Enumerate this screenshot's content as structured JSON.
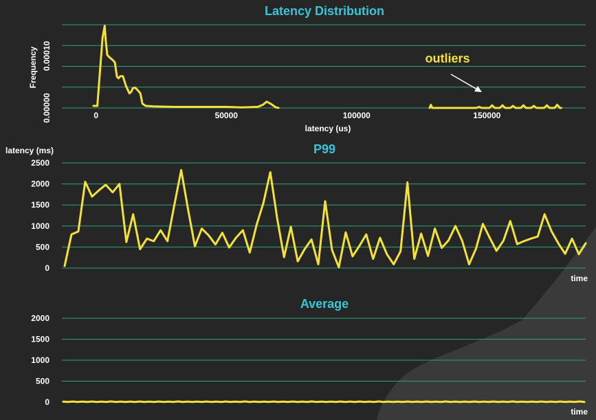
{
  "colors": {
    "background": "#262626",
    "title": "#38c6d6",
    "grid": "#2fa37a",
    "series": "#f2e23a",
    "annotation": "#f2e23a",
    "text": "#ffffff"
  },
  "chart_data": [
    {
      "type": "line",
      "title": "Latency Distribution",
      "xlabel": "latency (us)",
      "ylabel": "Frequency",
      "xlim": [
        -6000,
        180000
      ],
      "ylim": [
        0,
        0.00016
      ],
      "xticks": [
        0,
        50000,
        100000,
        150000
      ],
      "xtick_labels": [
        "0",
        "50000",
        "100000",
        "150000"
      ],
      "yticks": [
        0,
        0.0001
      ],
      "ytick_labels": [
        "0.00000",
        "0.00010"
      ],
      "grid": true,
      "annotation": {
        "text": "outliers",
        "arrow": true
      },
      "series": [
        {
          "x": [
            -1000,
            500,
            1500,
            2500,
            3300,
            3700,
            4300,
            5000,
            6200,
            7200,
            8000,
            8600,
            9300,
            10300,
            11500,
            12800,
            13500,
            14100,
            15000,
            16000,
            17000,
            17800,
            19000,
            22000,
            30000,
            40000,
            50000,
            56000,
            62000,
            64000,
            65500,
            67000,
            69000,
            70000
          ],
          "y": [
            4e-06,
            4e-06,
            7e-05,
            0.000135,
            0.000158,
            0.00013,
            0.000102,
            9.8e-05,
            9.3e-05,
            8.8e-05,
            6e-05,
            5.7e-05,
            6.1e-05,
            6.1e-05,
            4.2e-05,
            2.8e-05,
            3.1e-05,
            3.8e-05,
            3.9e-05,
            3.4e-05,
            2.8e-05,
            8e-06,
            4e-06,
            3e-06,
            2e-06,
            2e-06,
            2e-06,
            1e-06,
            2e-06,
            6e-06,
            1.2e-05,
            8e-06,
            1e-06,
            0
          ]
        },
        {
          "x": [
            128000,
            128500,
            129000,
            129500,
            130000,
            146000,
            147000,
            148000,
            151000,
            152000,
            153000,
            155000,
            156000,
            157000,
            159000,
            160000,
            161000,
            163000,
            164000,
            165000,
            167000,
            168000,
            169000,
            172000,
            173000,
            174000,
            176000,
            177000,
            178000,
            178500
          ],
          "y": [
            0,
            6e-06,
            0,
            0,
            0,
            0,
            2e-06,
            0,
            0,
            5e-06,
            0,
            0,
            5e-06,
            0,
            0,
            4e-06,
            0,
            0,
            5e-06,
            0,
            0,
            4e-06,
            0,
            0,
            5e-06,
            0,
            0,
            6e-06,
            0,
            0
          ]
        }
      ]
    },
    {
      "type": "line",
      "title": "P99",
      "ylabel": "latency (ms)",
      "xlabel": "time",
      "ylim": [
        0,
        2500
      ],
      "yticks": [
        0,
        500,
        1000,
        1500,
        2000,
        2500
      ],
      "grid": true,
      "series": [
        {
          "values": [
            50,
            800,
            870,
            2050,
            1700,
            1850,
            1980,
            1800,
            2000,
            620,
            1280,
            450,
            700,
            640,
            900,
            640,
            1500,
            2330,
            1400,
            520,
            940,
            780,
            560,
            840,
            490,
            720,
            900,
            370,
            1030,
            1550,
            2280,
            1180,
            260,
            980,
            160,
            450,
            680,
            90,
            1590,
            430,
            20,
            850,
            280,
            530,
            800,
            220,
            720,
            330,
            90,
            400,
            2040,
            220,
            820,
            290,
            940,
            480,
            660,
            1000,
            640,
            90,
            460,
            1050,
            720,
            410,
            650,
            1120,
            570,
            640,
            700,
            750,
            1280,
            880,
            590,
            340,
            700,
            330,
            590
          ]
        }
      ]
    },
    {
      "type": "line",
      "title": "Average",
      "xlabel": "time",
      "ylim": [
        0,
        2000
      ],
      "yticks": [
        0,
        500,
        1000,
        1500,
        2000
      ],
      "grid": true,
      "series": [
        {
          "values": [
            12,
            4,
            14,
            5,
            13,
            4,
            15,
            5,
            12,
            4,
            16,
            4,
            13,
            5,
            12,
            4,
            15,
            4,
            13,
            5,
            14,
            4,
            12,
            5,
            16,
            4,
            13,
            4,
            12,
            5,
            15,
            4,
            13,
            5,
            14,
            4,
            12,
            4,
            16,
            5,
            13,
            4,
            12,
            5,
            15,
            4,
            13,
            4,
            14,
            5,
            12,
            4,
            16,
            5,
            13,
            4,
            12,
            4,
            15,
            5,
            13,
            4,
            14,
            5,
            12,
            4,
            16,
            4,
            13,
            5,
            12,
            4,
            15,
            5,
            13,
            4,
            14,
            4,
            12,
            5,
            16,
            4,
            13,
            5,
            12,
            4,
            15,
            4,
            13,
            5,
            14,
            4,
            12,
            5,
            16,
            4,
            13,
            4,
            12,
            5,
            15,
            4,
            13,
            5,
            14,
            4,
            12,
            4,
            16,
            5
          ]
        }
      ]
    }
  ]
}
